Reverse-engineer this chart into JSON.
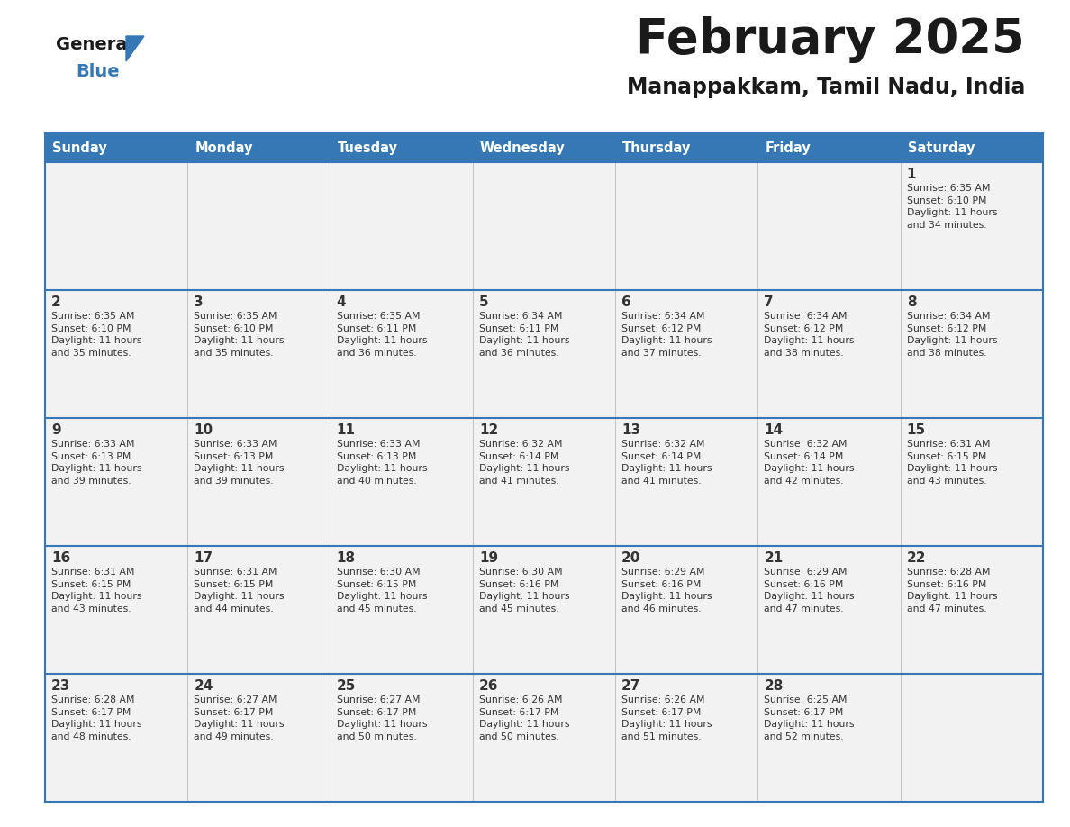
{
  "title": "February 2025",
  "subtitle": "Manappakkam, Tamil Nadu, India",
  "header_bg": "#3578b5",
  "header_text": "#ffffff",
  "cell_bg": "#f2f2f2",
  "border_color": "#3578b5",
  "text_color": "#333333",
  "logo_general_color": "#1a1a1a",
  "logo_blue_color": "#3578b5",
  "logo_triangle_color": "#3578b5",
  "days_of_week": [
    "Sunday",
    "Monday",
    "Tuesday",
    "Wednesday",
    "Thursday",
    "Friday",
    "Saturday"
  ],
  "calendar": [
    [
      null,
      null,
      null,
      null,
      null,
      null,
      {
        "day": "1",
        "sunrise": "6:35 AM",
        "sunset": "6:10 PM",
        "daylight": "11 hours\nand 34 minutes."
      }
    ],
    [
      {
        "day": "2",
        "sunrise": "6:35 AM",
        "sunset": "6:10 PM",
        "daylight": "11 hours\nand 35 minutes."
      },
      {
        "day": "3",
        "sunrise": "6:35 AM",
        "sunset": "6:10 PM",
        "daylight": "11 hours\nand 35 minutes."
      },
      {
        "day": "4",
        "sunrise": "6:35 AM",
        "sunset": "6:11 PM",
        "daylight": "11 hours\nand 36 minutes."
      },
      {
        "day": "5",
        "sunrise": "6:34 AM",
        "sunset": "6:11 PM",
        "daylight": "11 hours\nand 36 minutes."
      },
      {
        "day": "6",
        "sunrise": "6:34 AM",
        "sunset": "6:12 PM",
        "daylight": "11 hours\nand 37 minutes."
      },
      {
        "day": "7",
        "sunrise": "6:34 AM",
        "sunset": "6:12 PM",
        "daylight": "11 hours\nand 38 minutes."
      },
      {
        "day": "8",
        "sunrise": "6:34 AM",
        "sunset": "6:12 PM",
        "daylight": "11 hours\nand 38 minutes."
      }
    ],
    [
      {
        "day": "9",
        "sunrise": "6:33 AM",
        "sunset": "6:13 PM",
        "daylight": "11 hours\nand 39 minutes."
      },
      {
        "day": "10",
        "sunrise": "6:33 AM",
        "sunset": "6:13 PM",
        "daylight": "11 hours\nand 39 minutes."
      },
      {
        "day": "11",
        "sunrise": "6:33 AM",
        "sunset": "6:13 PM",
        "daylight": "11 hours\nand 40 minutes."
      },
      {
        "day": "12",
        "sunrise": "6:32 AM",
        "sunset": "6:14 PM",
        "daylight": "11 hours\nand 41 minutes."
      },
      {
        "day": "13",
        "sunrise": "6:32 AM",
        "sunset": "6:14 PM",
        "daylight": "11 hours\nand 41 minutes."
      },
      {
        "day": "14",
        "sunrise": "6:32 AM",
        "sunset": "6:14 PM",
        "daylight": "11 hours\nand 42 minutes."
      },
      {
        "day": "15",
        "sunrise": "6:31 AM",
        "sunset": "6:15 PM",
        "daylight": "11 hours\nand 43 minutes."
      }
    ],
    [
      {
        "day": "16",
        "sunrise": "6:31 AM",
        "sunset": "6:15 PM",
        "daylight": "11 hours\nand 43 minutes."
      },
      {
        "day": "17",
        "sunrise": "6:31 AM",
        "sunset": "6:15 PM",
        "daylight": "11 hours\nand 44 minutes."
      },
      {
        "day": "18",
        "sunrise": "6:30 AM",
        "sunset": "6:15 PM",
        "daylight": "11 hours\nand 45 minutes."
      },
      {
        "day": "19",
        "sunrise": "6:30 AM",
        "sunset": "6:16 PM",
        "daylight": "11 hours\nand 45 minutes."
      },
      {
        "day": "20",
        "sunrise": "6:29 AM",
        "sunset": "6:16 PM",
        "daylight": "11 hours\nand 46 minutes."
      },
      {
        "day": "21",
        "sunrise": "6:29 AM",
        "sunset": "6:16 PM",
        "daylight": "11 hours\nand 47 minutes."
      },
      {
        "day": "22",
        "sunrise": "6:28 AM",
        "sunset": "6:16 PM",
        "daylight": "11 hours\nand 47 minutes."
      }
    ],
    [
      {
        "day": "23",
        "sunrise": "6:28 AM",
        "sunset": "6:17 PM",
        "daylight": "11 hours\nand 48 minutes."
      },
      {
        "day": "24",
        "sunrise": "6:27 AM",
        "sunset": "6:17 PM",
        "daylight": "11 hours\nand 49 minutes."
      },
      {
        "day": "25",
        "sunrise": "6:27 AM",
        "sunset": "6:17 PM",
        "daylight": "11 hours\nand 50 minutes."
      },
      {
        "day": "26",
        "sunrise": "6:26 AM",
        "sunset": "6:17 PM",
        "daylight": "11 hours\nand 50 minutes."
      },
      {
        "day": "27",
        "sunrise": "6:26 AM",
        "sunset": "6:17 PM",
        "daylight": "11 hours\nand 51 minutes."
      },
      {
        "day": "28",
        "sunrise": "6:25 AM",
        "sunset": "6:17 PM",
        "daylight": "11 hours\nand 52 minutes."
      },
      null
    ]
  ]
}
